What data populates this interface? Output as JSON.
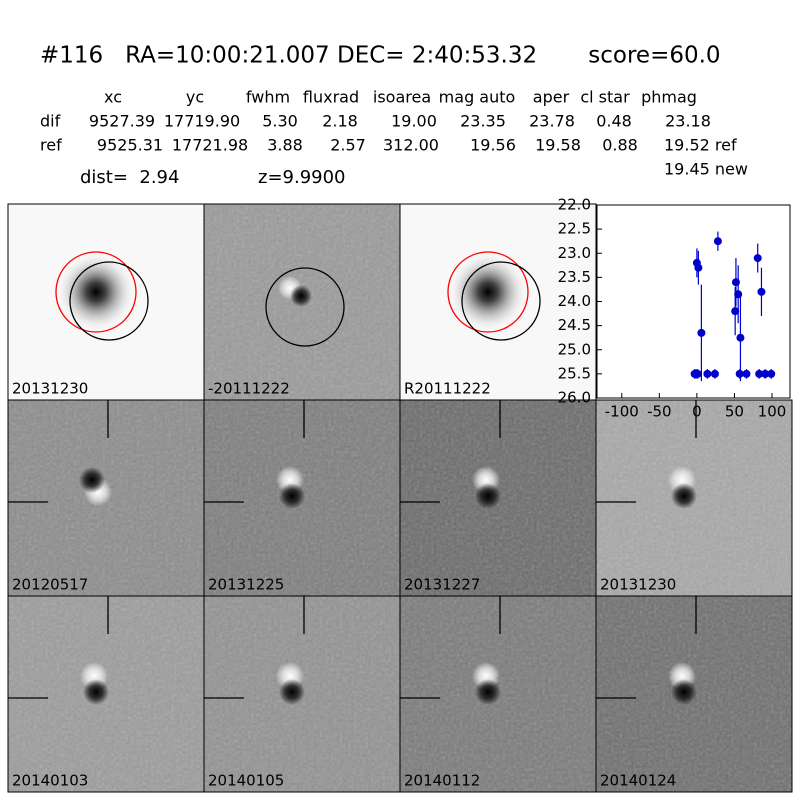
{
  "header": {
    "title": "#116   RA=10:00:21.007 DEC= 2:40:53.32       score=60.0"
  },
  "table": {
    "columns": [
      "xc",
      "yc",
      "fwhm",
      "fluxrad",
      "isoarea",
      "mag auto",
      "aper",
      "cl star",
      "phmag"
    ],
    "rows": [
      [
        "dif",
        "9527.39",
        "17719.90",
        "5.30",
        "2.18",
        "19.00",
        "23.35",
        "23.78",
        "0.48",
        "23.18"
      ],
      [
        "ref",
        "9525.31",
        "17721.98",
        "3.88",
        "2.57",
        "312.00",
        "19.56",
        "19.58",
        "0.88",
        "19.52 ref"
      ]
    ],
    "extra": "19.45 new"
  },
  "info": {
    "dist": "dist=  2.94",
    "z": "z=9.9900"
  },
  "stamps": [
    {
      "label": "20131230"
    },
    {
      "label": "-20111222"
    },
    {
      "label": "R20111222"
    },
    {
      "label": "20120517"
    },
    {
      "label": "20131225"
    },
    {
      "label": "20131227"
    },
    {
      "label": "20131230",
      "color": "#ff0000"
    },
    {
      "label": "20140103"
    },
    {
      "label": "20140105"
    },
    {
      "label": "20140112"
    },
    {
      "label": "20140124"
    }
  ],
  "chart_data": {
    "type": "scatter",
    "x": [
      -3,
      -1,
      1,
      0,
      2,
      6,
      14,
      24,
      28,
      51,
      52,
      55,
      57,
      58,
      66,
      81,
      83,
      86,
      91,
      99
    ],
    "series": [
      {
        "color": "#0000cc",
        "values": [
          25.5,
          25.5,
          25.5,
          23.2,
          23.3,
          24.65,
          25.5,
          25.5,
          22.75,
          24.2,
          23.6,
          23.85,
          25.5,
          24.75,
          25.5,
          23.1,
          25.5,
          23.8,
          25.5,
          25.5
        ],
        "errors": [
          0.1,
          0.1,
          0.1,
          0.3,
          0.35,
          1.0,
          0.1,
          0.1,
          0.2,
          0.5,
          0.5,
          0.6,
          0.1,
          0.9,
          0.1,
          0.3,
          0.1,
          0.5,
          0.1,
          0.1
        ]
      }
    ],
    "xlim": [
      -133,
      124
    ],
    "ylim": [
      26,
      22
    ],
    "xticks": [
      -100,
      -50,
      0,
      50,
      100
    ],
    "yticks": [
      {
        "value": 22,
        "label": "22.0"
      },
      {
        "value": 22.5,
        "label": "22.5"
      },
      {
        "value": 23,
        "label": "23.0"
      },
      {
        "value": 23.5,
        "label": "23.5"
      },
      {
        "value": 24,
        "label": "24.0"
      },
      {
        "value": 24.5,
        "label": "24.5"
      },
      {
        "value": 25,
        "label": "25.0"
      },
      {
        "value": 25.5,
        "label": "25.5"
      },
      {
        "value": 26,
        "label": "26.0"
      }
    ]
  }
}
